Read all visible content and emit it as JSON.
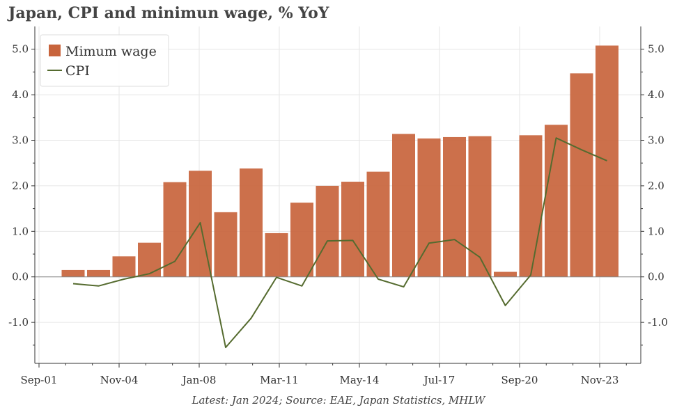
{
  "chart_data": {
    "type": "bar",
    "title": "Japan, CPI and minimun wage, % YoY",
    "footnote": "Latest: Jan 2024; Source: EAE, Japan Statistics, MHLW",
    "xlabel": "",
    "ylabel": "",
    "ylim": [
      -1.9,
      5.5
    ],
    "y_ticks": [
      -1.0,
      0.0,
      1.0,
      2.0,
      3.0,
      4.0,
      5.0
    ],
    "y_tick_labels": [
      "-1.0",
      "0.0",
      "1.0",
      "2.0",
      "3.0",
      "4.0",
      "5.0"
    ],
    "x_tick_labels": [
      "Sep-01",
      "Nov-04",
      "Jan-08",
      "Mar-11",
      "May-14",
      "Jul-17",
      "Sep-20",
      "Nov-23"
    ],
    "grid": true,
    "legend_position": "top-left",
    "categories": [
      "2002",
      "2003",
      "2004",
      "2005",
      "2006",
      "2007",
      "2008",
      "2009",
      "2010",
      "2011",
      "2012",
      "2013",
      "2014",
      "2015",
      "2016",
      "2017",
      "2018",
      "2019",
      "2020",
      "2021",
      "2022",
      "2023"
    ],
    "series": [
      {
        "name": "Mimum wage",
        "type": "bar",
        "color": "#c8643c",
        "values": [
          0.15,
          0.15,
          0.45,
          0.75,
          2.08,
          2.33,
          1.42,
          2.38,
          0.96,
          1.63,
          2.0,
          2.09,
          2.31,
          3.14,
          3.04,
          3.07,
          3.09,
          0.11,
          3.11,
          3.34,
          4.47,
          5.08
        ]
      },
      {
        "name": "CPI",
        "type": "line",
        "color": "#556b2f",
        "values": [
          -0.15,
          -0.2,
          -0.05,
          0.07,
          0.34,
          1.19,
          -1.55,
          -0.91,
          -0.01,
          -0.2,
          0.79,
          0.8,
          -0.05,
          -0.22,
          0.74,
          0.82,
          0.43,
          -0.63,
          0.04,
          3.05,
          2.79,
          2.55
        ]
      }
    ]
  }
}
